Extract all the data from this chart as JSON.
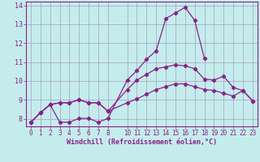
{
  "xlabel": "Windchill (Refroidissement éolien,°C)",
  "bg_color": "#c5ecec",
  "grid_color": "#a0a0c0",
  "line_color": "#882288",
  "spine_color": "#882288",
  "ylim": [
    7.6,
    14.2
  ],
  "xlim": [
    -0.5,
    23.5
  ],
  "yticks": [
    8,
    9,
    10,
    11,
    12,
    13,
    14
  ],
  "xticks": [
    0,
    1,
    2,
    3,
    4,
    5,
    6,
    7,
    8,
    10,
    11,
    12,
    13,
    14,
    15,
    16,
    17,
    18,
    19,
    20,
    21,
    22,
    23
  ],
  "line1_x": [
    0,
    1,
    2,
    3,
    4,
    5,
    6,
    7,
    8,
    10,
    11,
    12,
    13,
    14,
    15,
    16,
    17,
    18
  ],
  "line1_y": [
    7.82,
    8.32,
    8.75,
    7.82,
    7.82,
    8.02,
    8.02,
    7.82,
    8.02,
    10.05,
    10.55,
    11.15,
    11.6,
    13.3,
    13.6,
    13.9,
    13.2,
    11.2
  ],
  "line2_x": [
    0,
    1,
    2,
    3,
    4,
    5,
    6,
    7,
    8,
    10,
    11,
    12,
    13,
    14,
    15,
    16,
    17,
    18,
    19,
    20,
    21,
    22,
    23
  ],
  "line2_y": [
    7.82,
    8.32,
    8.75,
    8.85,
    8.85,
    9.0,
    8.85,
    8.85,
    8.4,
    9.55,
    10.05,
    10.35,
    10.65,
    10.75,
    10.85,
    10.8,
    10.65,
    10.1,
    10.05,
    10.25,
    9.65,
    9.5,
    8.95
  ],
  "line3_x": [
    0,
    1,
    2,
    3,
    4,
    5,
    6,
    7,
    8,
    10,
    11,
    12,
    13,
    14,
    15,
    16,
    17,
    18,
    19,
    20,
    21,
    22,
    23
  ],
  "line3_y": [
    7.82,
    8.32,
    8.75,
    8.85,
    8.85,
    9.0,
    8.85,
    8.85,
    8.4,
    8.85,
    9.05,
    9.3,
    9.55,
    9.7,
    9.85,
    9.85,
    9.7,
    9.55,
    9.5,
    9.35,
    9.2,
    9.5,
    8.95
  ],
  "xlabel_fontsize": 6,
  "tick_fontsize": 5.5,
  "ytick_fontsize": 6,
  "lw": 0.9,
  "ms": 2.2
}
